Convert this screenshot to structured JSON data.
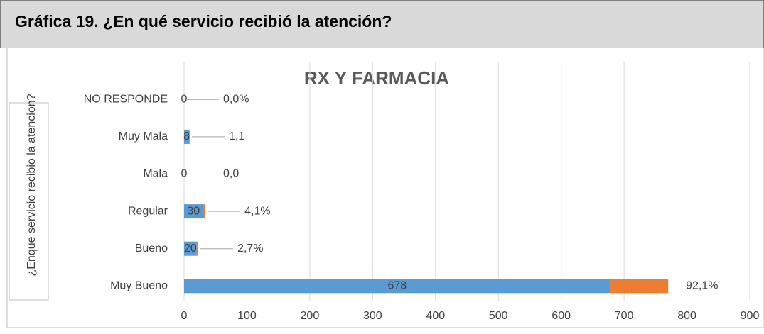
{
  "header": {
    "title": "Gráfica 19. ¿En qué servicio recibió la atención?"
  },
  "chart_data": {
    "type": "bar",
    "orientation": "horizontal",
    "stacked": true,
    "title": "RX Y FARMACIA",
    "y_label": "¿Enque servicio recibio la atencion?",
    "categories": [
      "NO RESPONDE",
      "Muy Mala",
      "Mala",
      "Regular",
      "Bueno",
      "Muy Bueno"
    ],
    "series": [
      {
        "color": "#5b9bd5",
        "values": [
          0,
          8,
          0,
          30,
          20,
          678
        ]
      },
      {
        "color": "#ed7d31",
        "values": [
          0.0,
          1.1,
          0.0,
          4.1,
          2.7,
          92.1
        ],
        "value_labels": [
          "0,0%",
          "1,1",
          "0,0",
          "4,1%",
          "2,7%",
          "92,1%"
        ]
      }
    ],
    "xlim": [
      0,
      900
    ],
    "xticks": [
      0,
      100,
      200,
      300,
      400,
      500,
      600,
      700,
      800,
      900
    ],
    "grid": true
  }
}
